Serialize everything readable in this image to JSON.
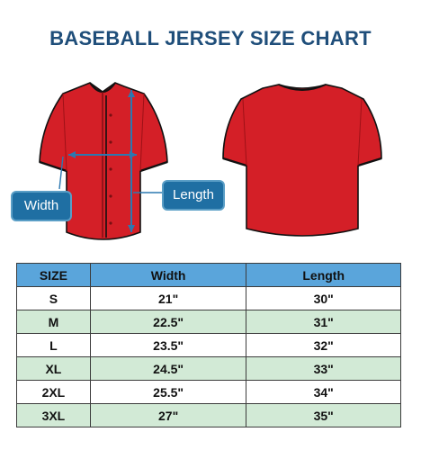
{
  "title": "BASEBALL JERSEY SIZE CHART",
  "labels": {
    "width": "Width",
    "length": "Length"
  },
  "colors": {
    "jersey": "#d41f27",
    "trim": "#111111",
    "arrow": "#2c78b0",
    "header": "#5aa5db",
    "stripe": "#d2ead6"
  },
  "table": {
    "headers": [
      "SIZE",
      "Width",
      "Length"
    ],
    "rows": [
      {
        "size": "S",
        "width": "21\"",
        "length": "30\""
      },
      {
        "size": "M",
        "width": "22.5\"",
        "length": "31\""
      },
      {
        "size": "L",
        "width": "23.5\"",
        "length": "32\""
      },
      {
        "size": "XL",
        "width": "24.5\"",
        "length": "33\""
      },
      {
        "size": "2XL",
        "width": "25.5\"",
        "length": "34\""
      },
      {
        "size": "3XL",
        "width": "27\"",
        "length": "35\""
      }
    ]
  }
}
